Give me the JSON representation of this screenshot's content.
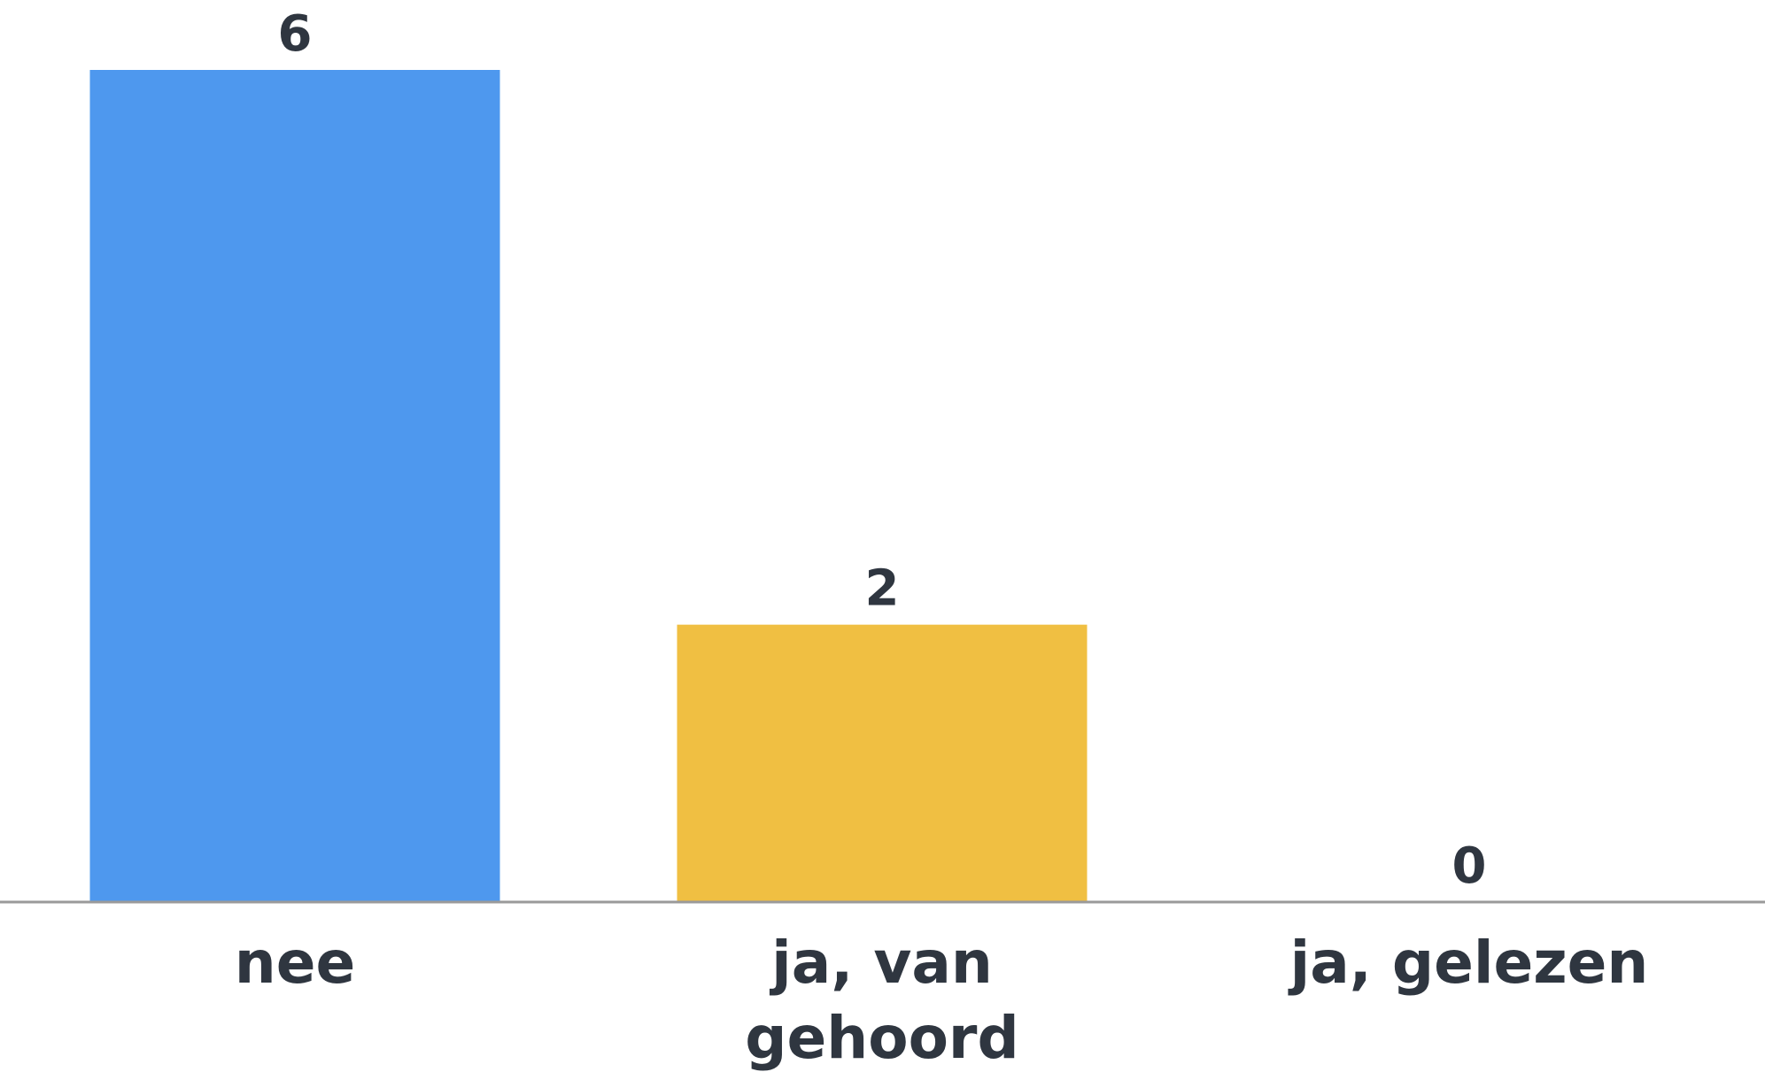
{
  "chart_data": {
    "type": "bar",
    "categories": [
      "nee",
      "ja, van gehoord",
      "ja, gelezen"
    ],
    "category_lines": [
      [
        "nee"
      ],
      [
        "ja, van",
        "gehoord"
      ],
      [
        "ja, gelezen"
      ]
    ],
    "values": [
      6,
      2,
      0
    ],
    "colors": [
      "#4e98ee",
      "#f0bf42",
      "#e64a4a"
    ],
    "axis_color": "#9a9a9a",
    "title": "",
    "xlabel": "",
    "ylabel": "",
    "ylim": [
      0,
      6
    ],
    "grid": false,
    "legend": "none",
    "data_labels": true
  }
}
